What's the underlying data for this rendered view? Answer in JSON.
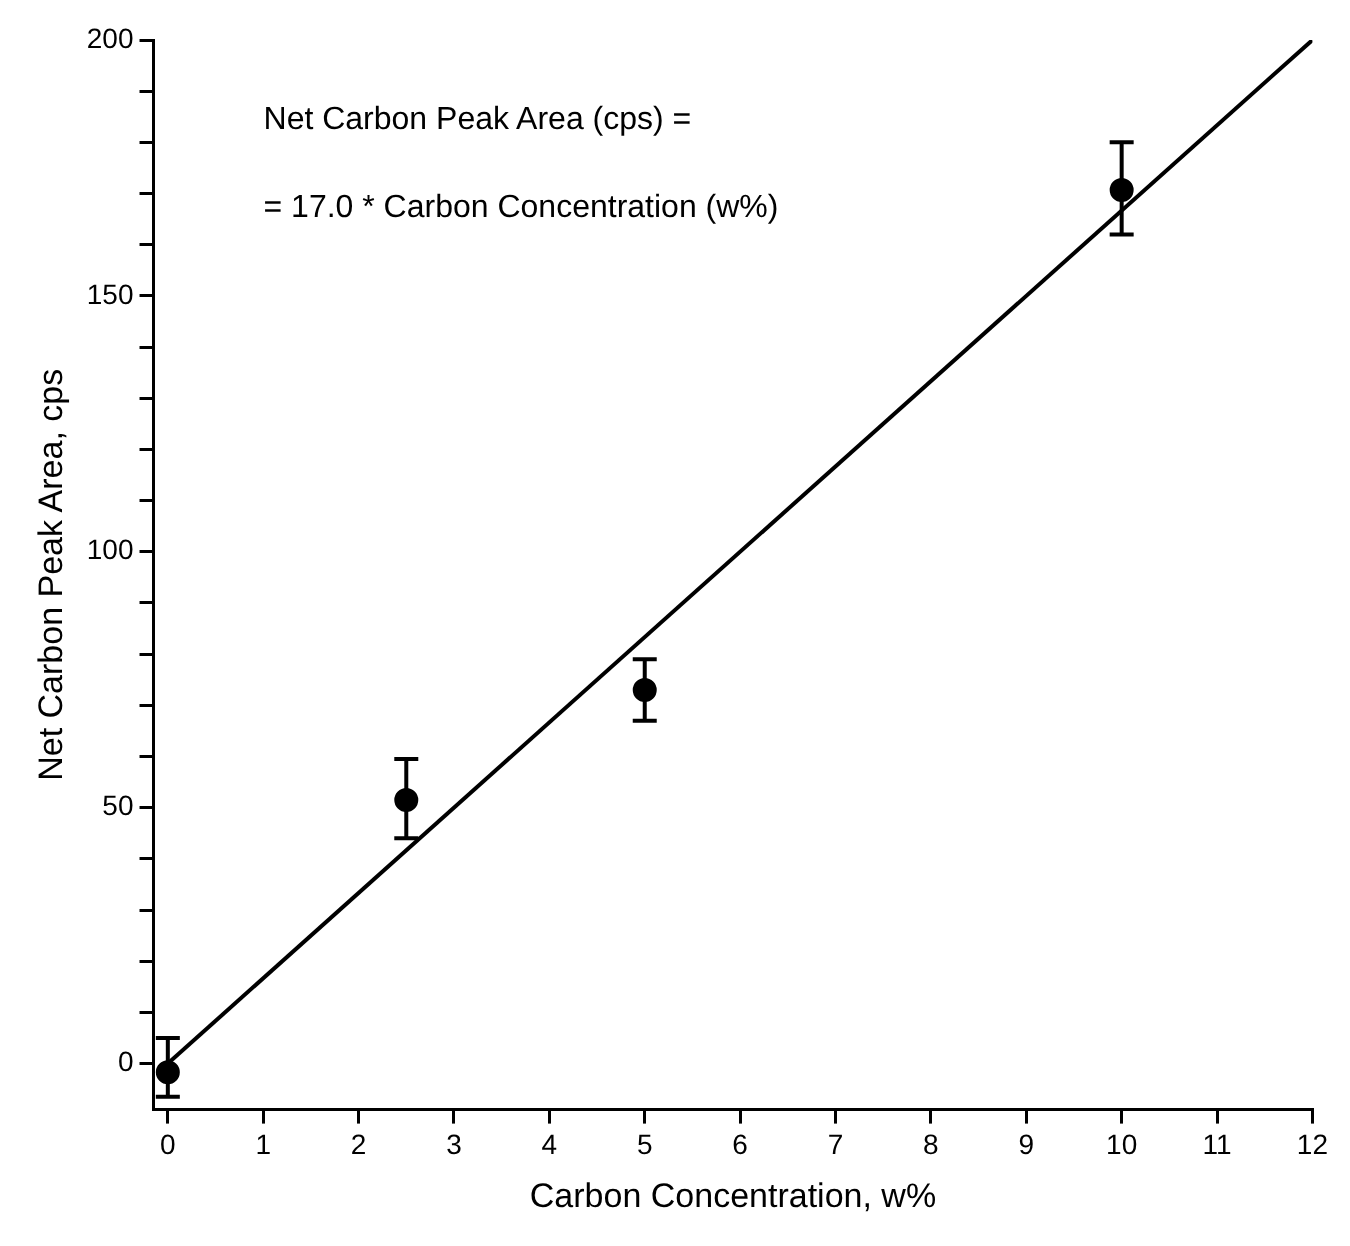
{
  "chart_data": {
    "type": "scatter",
    "xlabel": "Carbon Concentration, w%",
    "ylabel": "Net Carbon Peak Area, cps",
    "annotations": [
      "Net Carbon Peak Area (cps) =",
      "= 17.0 * Carbon Concentration (w%)"
    ],
    "series": [
      {
        "color": "#000000",
        "x": [
          0,
          2.5,
          5,
          10
        ],
        "values": [
          -1.7,
          51.5,
          73,
          170.7
        ],
        "errors": [
          [
            -6.5,
            5
          ],
          [
            44,
            59.5
          ],
          [
            67,
            79
          ],
          [
            162,
            180
          ]
        ],
        "marker": "circle"
      },
      {
        "type": "line",
        "color": "#000000",
        "x": [
          0,
          12
        ],
        "values": [
          0,
          200
        ],
        "marker": "none",
        "line_style": "solid"
      }
    ],
    "xlim": [
      -0.15,
      12
    ],
    "xticks": [
      0,
      1,
      2,
      3,
      4,
      5,
      6,
      7,
      8,
      9,
      10,
      11,
      12
    ],
    "ylim": [
      -9,
      200
    ],
    "yticks": [
      0,
      {
        "value": 10,
        "label": null
      },
      {
        "value": 20,
        "label": null
      },
      {
        "value": 30,
        "label": null
      },
      {
        "value": 40,
        "label": null
      },
      50,
      {
        "value": 60,
        "label": null
      },
      {
        "value": 70,
        "label": null
      },
      {
        "value": 80,
        "label": null
      },
      {
        "value": 90,
        "label": null
      },
      100,
      {
        "value": 110,
        "label": null
      },
      {
        "value": 120,
        "label": null
      },
      {
        "value": 130,
        "label": null
      },
      {
        "value": 140,
        "label": null
      },
      150,
      {
        "value": 160,
        "label": null
      },
      {
        "value": 170,
        "label": null
      },
      {
        "value": 180,
        "label": null
      },
      {
        "value": 190,
        "label": null
      },
      200
    ],
    "grid": false,
    "legend": false
  }
}
